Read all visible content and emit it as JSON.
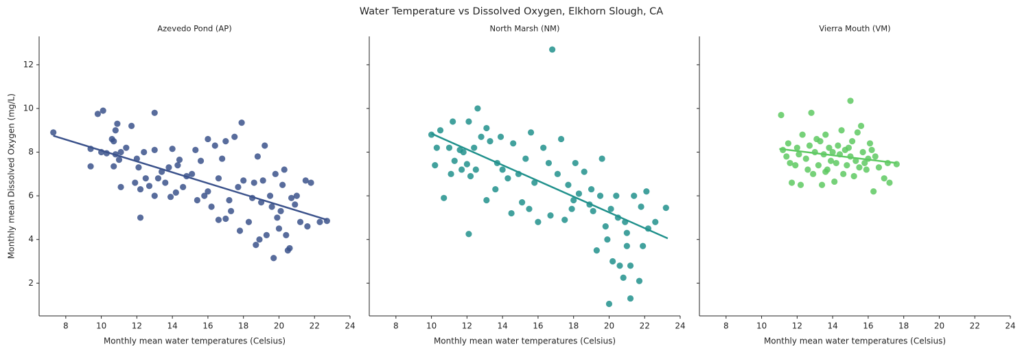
{
  "title": "Water Temperature vs Dissolved Oxygen, Elkhorn Slough, CA",
  "chart_data": [
    {
      "type": "scatter",
      "title": "Azevedo Pond (AP)",
      "x_label": "Monthly mean water temperatures (Celsius)",
      "y_label": "Monthly mean Dissolved Oxygen (mg/L)",
      "color": "#3b528b",
      "xlim": [
        6.5,
        24
      ],
      "ylim": [
        0.5,
        13.3
      ],
      "xticks": [
        8,
        10,
        12,
        14,
        16,
        18,
        20,
        22,
        24
      ],
      "yticks": [
        2,
        4,
        6,
        8,
        10,
        12
      ],
      "show_ytick_labels": true,
      "x": [
        7.3,
        9.4,
        9.4,
        9.8,
        10.1,
        10.0,
        10.3,
        10.6,
        10.7,
        10.7,
        10.8,
        10.9,
        10.8,
        11.0,
        11.1,
        11.1,
        11.4,
        11.7,
        11.9,
        12.0,
        12.1,
        12.2,
        12.2,
        12.4,
        12.5,
        12.7,
        13.0,
        13.0,
        13.0,
        13.2,
        13.4,
        13.6,
        13.8,
        13.9,
        14.0,
        14.2,
        14.4,
        14.6,
        14.8,
        15.1,
        15.3,
        15.4,
        15.6,
        15.8,
        16.0,
        16.2,
        16.4,
        16.6,
        16.6,
        16.8,
        17.0,
        17.0,
        17.3,
        17.5,
        17.7,
        17.8,
        17.9,
        18.0,
        18.3,
        18.6,
        18.7,
        18.8,
        18.9,
        19.1,
        19.2,
        19.3,
        19.5,
        19.7,
        19.8,
        19.9,
        20.0,
        20.2,
        20.3,
        20.5,
        20.6,
        20.7,
        20.9,
        21.0,
        21.2,
        21.5,
        21.8,
        22.3,
        22.7,
        21.6,
        20.1,
        18.5,
        17.2,
        16.0,
        14.3,
        19.6,
        20.4,
        19.0
      ],
      "y": [
        8.9,
        7.35,
        8.15,
        9.75,
        9.9,
        8.0,
        7.95,
        8.6,
        8.5,
        7.35,
        9.0,
        9.3,
        7.9,
        7.65,
        6.4,
        8.0,
        8.2,
        9.2,
        6.6,
        7.7,
        7.3,
        6.3,
        5.0,
        8.0,
        6.8,
        6.45,
        9.8,
        8.1,
        6.0,
        6.8,
        7.1,
        6.6,
        7.3,
        5.95,
        8.15,
        6.15,
        7.65,
        6.4,
        6.9,
        7.0,
        8.1,
        5.8,
        7.6,
        6.0,
        8.6,
        5.5,
        8.3,
        4.9,
        6.8,
        7.7,
        8.5,
        4.95,
        5.3,
        8.7,
        6.4,
        4.4,
        9.35,
        6.7,
        4.8,
        6.6,
        3.75,
        7.8,
        4.0,
        6.7,
        8.3,
        4.2,
        6.0,
        3.15,
        7.0,
        5.0,
        4.5,
        6.5,
        7.2,
        3.5,
        3.6,
        5.9,
        5.6,
        6.0,
        4.8,
        6.7,
        6.6,
        4.8,
        4.85,
        4.6,
        5.3,
        5.9,
        5.8,
        6.2,
        7.4,
        5.5,
        4.2,
        5.7
      ],
      "trend": {
        "x": [
          7.3,
          22.7
        ],
        "y": [
          8.75,
          4.9
        ]
      }
    },
    {
      "type": "scatter",
      "title": "North Marsh (NM)",
      "x_label": "Monthly mean water temperatures (Celsius)",
      "color": "#21918c",
      "xlim": [
        6.5,
        24
      ],
      "ylim": [
        0.5,
        13.3
      ],
      "xticks": [
        8,
        10,
        12,
        14,
        16,
        18,
        20,
        22,
        24
      ],
      "yticks": [
        2,
        4,
        6,
        8,
        10,
        12
      ],
      "show_ytick_labels": false,
      "x": [
        10.0,
        10.2,
        10.3,
        10.5,
        10.7,
        11.0,
        11.1,
        11.2,
        11.3,
        11.6,
        11.7,
        11.8,
        12.0,
        12.1,
        12.1,
        12.2,
        12.4,
        12.5,
        12.6,
        12.8,
        13.1,
        13.1,
        13.3,
        13.6,
        13.7,
        13.9,
        14.0,
        14.3,
        14.5,
        14.6,
        14.9,
        15.1,
        15.3,
        15.5,
        15.6,
        15.8,
        16.0,
        16.3,
        16.6,
        16.7,
        16.8,
        17.1,
        17.3,
        17.5,
        17.7,
        17.9,
        18.1,
        18.3,
        18.6,
        18.9,
        19.1,
        19.3,
        19.5,
        19.6,
        19.8,
        19.9,
        20.0,
        20.1,
        20.2,
        20.4,
        20.6,
        20.8,
        20.9,
        21.0,
        21.2,
        21.2,
        21.4,
        21.7,
        21.8,
        21.9,
        22.1,
        22.2,
        22.6,
        23.2,
        20.5,
        19.0,
        18.0,
        21.0
      ],
      "y": [
        8.8,
        7.4,
        8.2,
        9.0,
        5.9,
        8.2,
        7.0,
        9.4,
        7.6,
        8.1,
        7.2,
        8.0,
        7.45,
        9.4,
        4.25,
        6.9,
        8.2,
        7.2,
        10.0,
        8.7,
        9.1,
        5.8,
        8.5,
        6.3,
        7.5,
        8.7,
        7.2,
        6.8,
        5.2,
        8.4,
        7.0,
        5.7,
        7.7,
        5.4,
        8.9,
        6.6,
        4.8,
        8.2,
        7.5,
        5.1,
        12.7,
        7.0,
        8.6,
        4.9,
        6.5,
        5.4,
        7.5,
        6.1,
        7.1,
        5.6,
        5.3,
        3.5,
        6.0,
        7.7,
        4.6,
        4.0,
        1.05,
        5.4,
        3.0,
        6.0,
        2.8,
        2.25,
        4.8,
        3.7,
        1.3,
        2.8,
        6.0,
        2.1,
        5.5,
        3.7,
        6.2,
        4.5,
        4.8,
        5.45,
        5.0,
        6.3,
        5.8,
        4.3
      ],
      "trend": {
        "x": [
          10.0,
          23.3
        ],
        "y": [
          8.85,
          4.05
        ]
      }
    },
    {
      "type": "scatter",
      "title": "Vierra Mouth (VM)",
      "x_label": "Monthly mean water temperatures (Celsius)",
      "color": "#5ec962",
      "xlim": [
        6.5,
        24
      ],
      "ylim": [
        0.5,
        13.3
      ],
      "xticks": [
        8,
        10,
        12,
        14,
        16,
        18,
        20,
        22,
        24
      ],
      "yticks": [
        2,
        4,
        6,
        8,
        10,
        12
      ],
      "show_ytick_labels": false,
      "x": [
        11.1,
        11.2,
        11.4,
        11.5,
        11.7,
        11.9,
        12.0,
        12.2,
        12.3,
        12.5,
        12.7,
        12.8,
        12.9,
        13.0,
        13.2,
        13.3,
        13.4,
        13.5,
        13.6,
        13.7,
        13.8,
        13.9,
        14.0,
        14.1,
        14.2,
        14.3,
        14.5,
        14.6,
        14.7,
        14.8,
        15.0,
        15.0,
        15.1,
        15.2,
        15.3,
        15.4,
        15.5,
        15.6,
        15.7,
        15.8,
        16.0,
        16.2,
        16.3,
        16.4,
        16.6,
        16.9,
        17.1,
        17.2,
        17.6,
        12.6,
        13.1,
        14.4,
        15.9,
        12.1,
        11.6,
        13.6,
        14.9,
        16.1
      ],
      "y": [
        9.7,
        8.1,
        7.8,
        8.4,
        6.6,
        7.4,
        8.2,
        6.5,
        8.8,
        7.7,
        8.3,
        9.8,
        7.0,
        8.0,
        7.4,
        8.5,
        6.5,
        7.9,
        8.8,
        7.2,
        8.2,
        7.6,
        8.0,
        6.65,
        7.5,
        8.3,
        9.0,
        7.0,
        8.1,
        7.4,
        10.35,
        7.8,
        8.5,
        6.9,
        7.6,
        8.9,
        7.3,
        9.2,
        8.0,
        7.5,
        7.7,
        8.1,
        6.2,
        7.8,
        7.3,
        6.8,
        7.5,
        6.6,
        7.45,
        7.2,
        8.6,
        7.9,
        7.2,
        7.9,
        7.5,
        7.1,
        8.2,
        8.4
      ],
      "trend": {
        "x": [
          11.0,
          17.6
        ],
        "y": [
          8.15,
          7.5
        ]
      }
    }
  ]
}
